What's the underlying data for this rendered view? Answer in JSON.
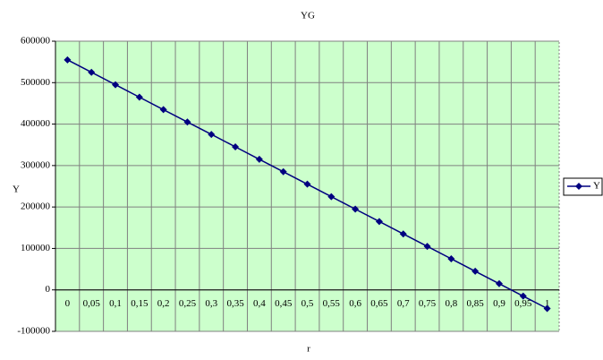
{
  "chart_data": {
    "type": "line",
    "title": "YG",
    "x_label": "r",
    "y_label": "Y",
    "categories": [
      "0",
      "0,05",
      "0,1",
      "0,15",
      "0,2",
      "0,25",
      "0,3",
      "0,35",
      "0,4",
      "0,45",
      "0,5",
      "0,55",
      "0,6",
      "0,65",
      "0,7",
      "0,75",
      "0,8",
      "0,85",
      "0,9",
      "0,95",
      "1"
    ],
    "series": [
      {
        "name": "Y",
        "color": "#000080",
        "values": [
          555000,
          525000,
          495000,
          465000,
          435000,
          405000,
          375000,
          345000,
          315000,
          285000,
          255000,
          225000,
          195000,
          165000,
          135000,
          105000,
          75000,
          45000,
          15000,
          -15000,
          -45000
        ]
      }
    ],
    "ylim": [
      -100000,
      600000
    ],
    "yticks": [
      -100000,
      0,
      100000,
      200000,
      300000,
      400000,
      500000,
      600000
    ],
    "grid": true,
    "legend": "right",
    "plot_background": "#ccffcc"
  }
}
